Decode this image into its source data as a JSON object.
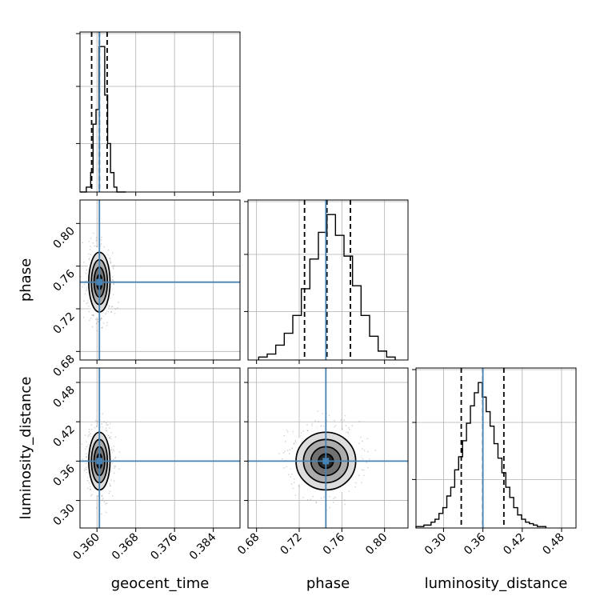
{
  "chart_data": {
    "type": "corner",
    "parameters": [
      "geocent_time",
      "phase",
      "luminosity_distance"
    ],
    "truths": {
      "geocent_time": 0.3605,
      "phase": 0.745,
      "luminosity_distance": 0.36
    },
    "ranges": {
      "geocent_time": [
        0.3565,
        0.3895
      ],
      "phase": [
        0.672,
        0.822
      ],
      "luminosity_distance": [
        0.258,
        0.502
      ]
    },
    "ticks": {
      "geocent_time": [
        "0.360",
        "0.368",
        "0.376",
        "0.384"
      ],
      "phase": [
        "0.68",
        "0.72",
        "0.76",
        "0.80"
      ],
      "luminosity_distance": [
        "0.30",
        "0.36",
        "0.42",
        "0.48"
      ]
    },
    "quantiles": {
      "geocent_time": [
        0.3589,
        0.3605,
        0.3621
      ],
      "phase": [
        0.725,
        0.746,
        0.768
      ],
      "luminosity_distance": [
        0.327,
        0.36,
        0.392
      ]
    },
    "histograms": {
      "geocent_time": {
        "edges": [
          0.3565,
          0.3578,
          0.3587,
          0.3592,
          0.3598,
          0.3604,
          0.361,
          0.3616,
          0.3622,
          0.3628,
          0.3635,
          0.3641,
          0.3647,
          0.366
        ],
        "counts": [
          0,
          1,
          4,
          14,
          17,
          30,
          30,
          20,
          10,
          4,
          1,
          0,
          0
        ]
      },
      "phase": {
        "edges": [
          0.682,
          0.69,
          0.698,
          0.706,
          0.714,
          0.722,
          0.73,
          0.738,
          0.746,
          0.754,
          0.762,
          0.77,
          0.778,
          0.786,
          0.794,
          0.802,
          0.81
        ],
        "counts": [
          1,
          2,
          5,
          9,
          15,
          24,
          34,
          43,
          49,
          42,
          35,
          25,
          15,
          8,
          3,
          1
        ]
      },
      "luminosity_distance": {
        "edges": [
          0.258,
          0.27,
          0.281,
          0.287,
          0.293,
          0.299,
          0.305,
          0.311,
          0.317,
          0.323,
          0.329,
          0.335,
          0.341,
          0.347,
          0.353,
          0.359,
          0.365,
          0.371,
          0.377,
          0.383,
          0.389,
          0.395,
          0.401,
          0.407,
          0.413,
          0.419,
          0.425,
          0.431,
          0.437,
          0.443,
          0.449,
          0.456
        ],
        "counts": [
          1,
          2,
          4,
          6,
          10,
          14,
          22,
          28,
          40,
          49,
          60,
          72,
          84,
          93,
          100,
          90,
          80,
          70,
          58,
          48,
          38,
          28,
          21,
          14,
          9,
          6,
          4,
          3,
          2,
          1,
          1
        ]
      }
    },
    "spreads": {
      "geocent_time": 0.0011,
      "phase": 0.014,
      "luminosity_distance": 0.022
    },
    "grid": true,
    "truth_color": "#4682b4",
    "hist_color": "#000000"
  }
}
